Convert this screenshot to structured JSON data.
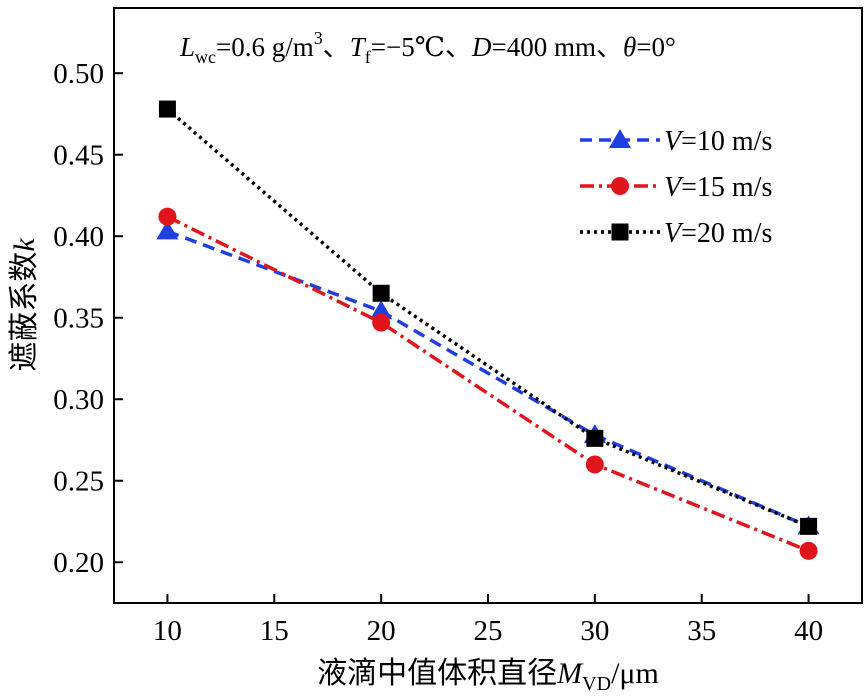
{
  "chart_data": {
    "type": "line",
    "annotation": {
      "lwc_sym": "L",
      "lwc_sub": "wc",
      "lwc_val": "=0.6 g/m",
      "lwc_sup": "3",
      "sep": "、",
      "tf_sym": "T",
      "tf_sub": "f",
      "tf_val": "=−5℃",
      "d_sym": "D",
      "d_val": "=400 mm",
      "theta_sym": "θ",
      "theta_val": "=0°"
    },
    "x": [
      10,
      20,
      30,
      40
    ],
    "xlim": [
      7.5,
      42.5
    ],
    "ylim": [
      0.175,
      0.54
    ],
    "xticks": [
      "10",
      "15",
      "20",
      "25",
      "30",
      "35",
      "40"
    ],
    "yticks": [
      "0.20",
      "0.25",
      "0.30",
      "0.35",
      "0.40",
      "0.45",
      "0.50"
    ],
    "xlabel": {
      "text": "液滴中值体积直径",
      "sym": "M",
      "sub": "VD",
      "unit": "/μm"
    },
    "ylabel": {
      "text": "遮蔽系数",
      "sym": "k"
    },
    "legend_position": "upper-right",
    "series": [
      {
        "sym": "V",
        "label": "=10 m/s",
        "color": "#1f3fe0",
        "marker": "triangle",
        "dash": "12 7",
        "values": [
          0.403,
          0.354,
          0.278,
          0.222
        ]
      },
      {
        "sym": "V",
        "label": "=15 m/s",
        "color": "#e0141b",
        "marker": "circle",
        "dash": "14 5 3 5",
        "values": [
          0.412,
          0.347,
          0.26,
          0.207
        ]
      },
      {
        "sym": "V",
        "label": "=20 m/s",
        "color": "#000000",
        "marker": "square",
        "dash": "3 4",
        "values": [
          0.478,
          0.365,
          0.276,
          0.222
        ]
      }
    ]
  }
}
